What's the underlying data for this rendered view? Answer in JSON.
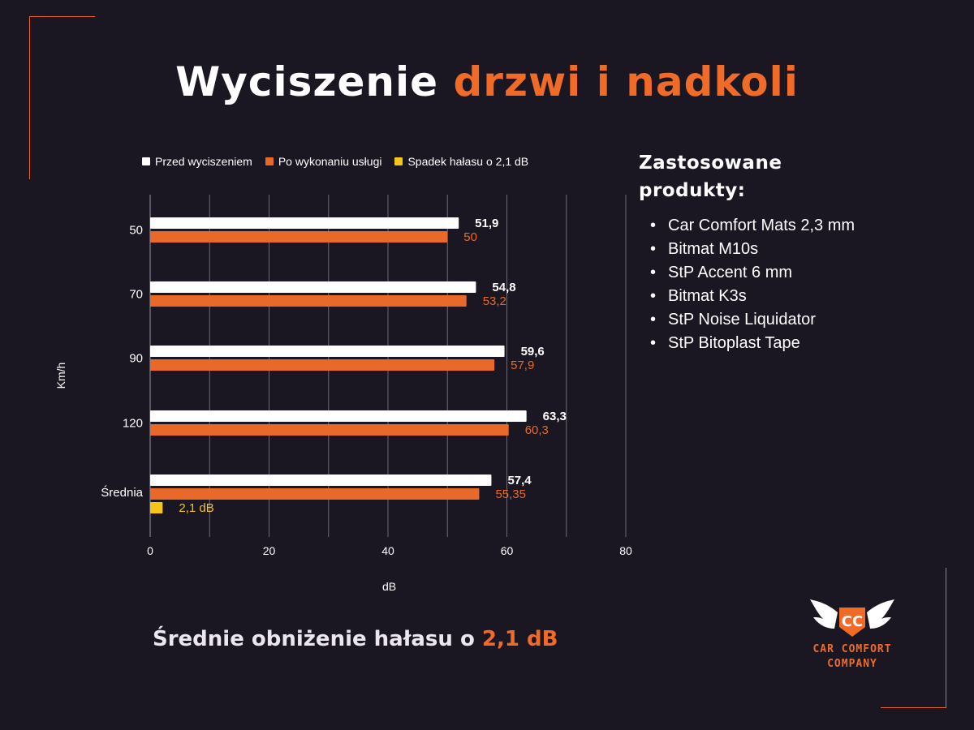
{
  "title": {
    "main": "Wyciszenie",
    "accent": "drzwi i nadkoli"
  },
  "colors": {
    "background": "#1b1722",
    "accent": "#f06a28",
    "before": "#ffffff",
    "after": "#e8692a",
    "drop": "#f5c518",
    "grid": "#6e6a74"
  },
  "chart_data": {
    "type": "bar",
    "orientation": "horizontal",
    "categories": [
      "50",
      "70",
      "90",
      "120",
      "Średnia"
    ],
    "series": [
      {
        "name": "Przed wyciszeniem",
        "values": [
          51.9,
          54.8,
          59.6,
          63.3,
          57.4
        ],
        "labels": [
          "51,9",
          "54,8",
          "59,6",
          "63,3",
          "57,4"
        ],
        "color": "#ffffff"
      },
      {
        "name": "Po wykonaniu usługi",
        "values": [
          50,
          53.2,
          57.9,
          60.3,
          55.35
        ],
        "labels": [
          "50",
          "53,2",
          "57,9",
          "60,3",
          "55,35"
        ],
        "color": "#e8692a"
      },
      {
        "name": "Spadek hałasu o 2,1 dB",
        "values": [
          null,
          null,
          null,
          null,
          2.1
        ],
        "labels": [
          "",
          "",
          "",
          "",
          "2,1 dB"
        ],
        "color": "#f5c518"
      }
    ],
    "xlabel": "dB",
    "ylabel": "Km/h",
    "xlim": [
      0,
      80
    ],
    "xticks": [
      0,
      20,
      40,
      60,
      80
    ],
    "grid": true,
    "legend": "top"
  },
  "products": {
    "heading_line1": "Zastosowane",
    "heading_line2": "produkty:",
    "items": [
      "Car Comfort Mats 2,3 mm",
      "Bitmat M10s",
      "StP Accent 6 mm",
      "Bitmat K3s",
      "StP Noise Liquidator",
      "StP Bitoplast Tape"
    ]
  },
  "summary": {
    "text": "Średnie obniżenie hałasu o",
    "accent": "2,1 dB"
  },
  "logo": {
    "initials": "CC",
    "line1": "CAR COMFORT",
    "line2": "COMPANY"
  }
}
